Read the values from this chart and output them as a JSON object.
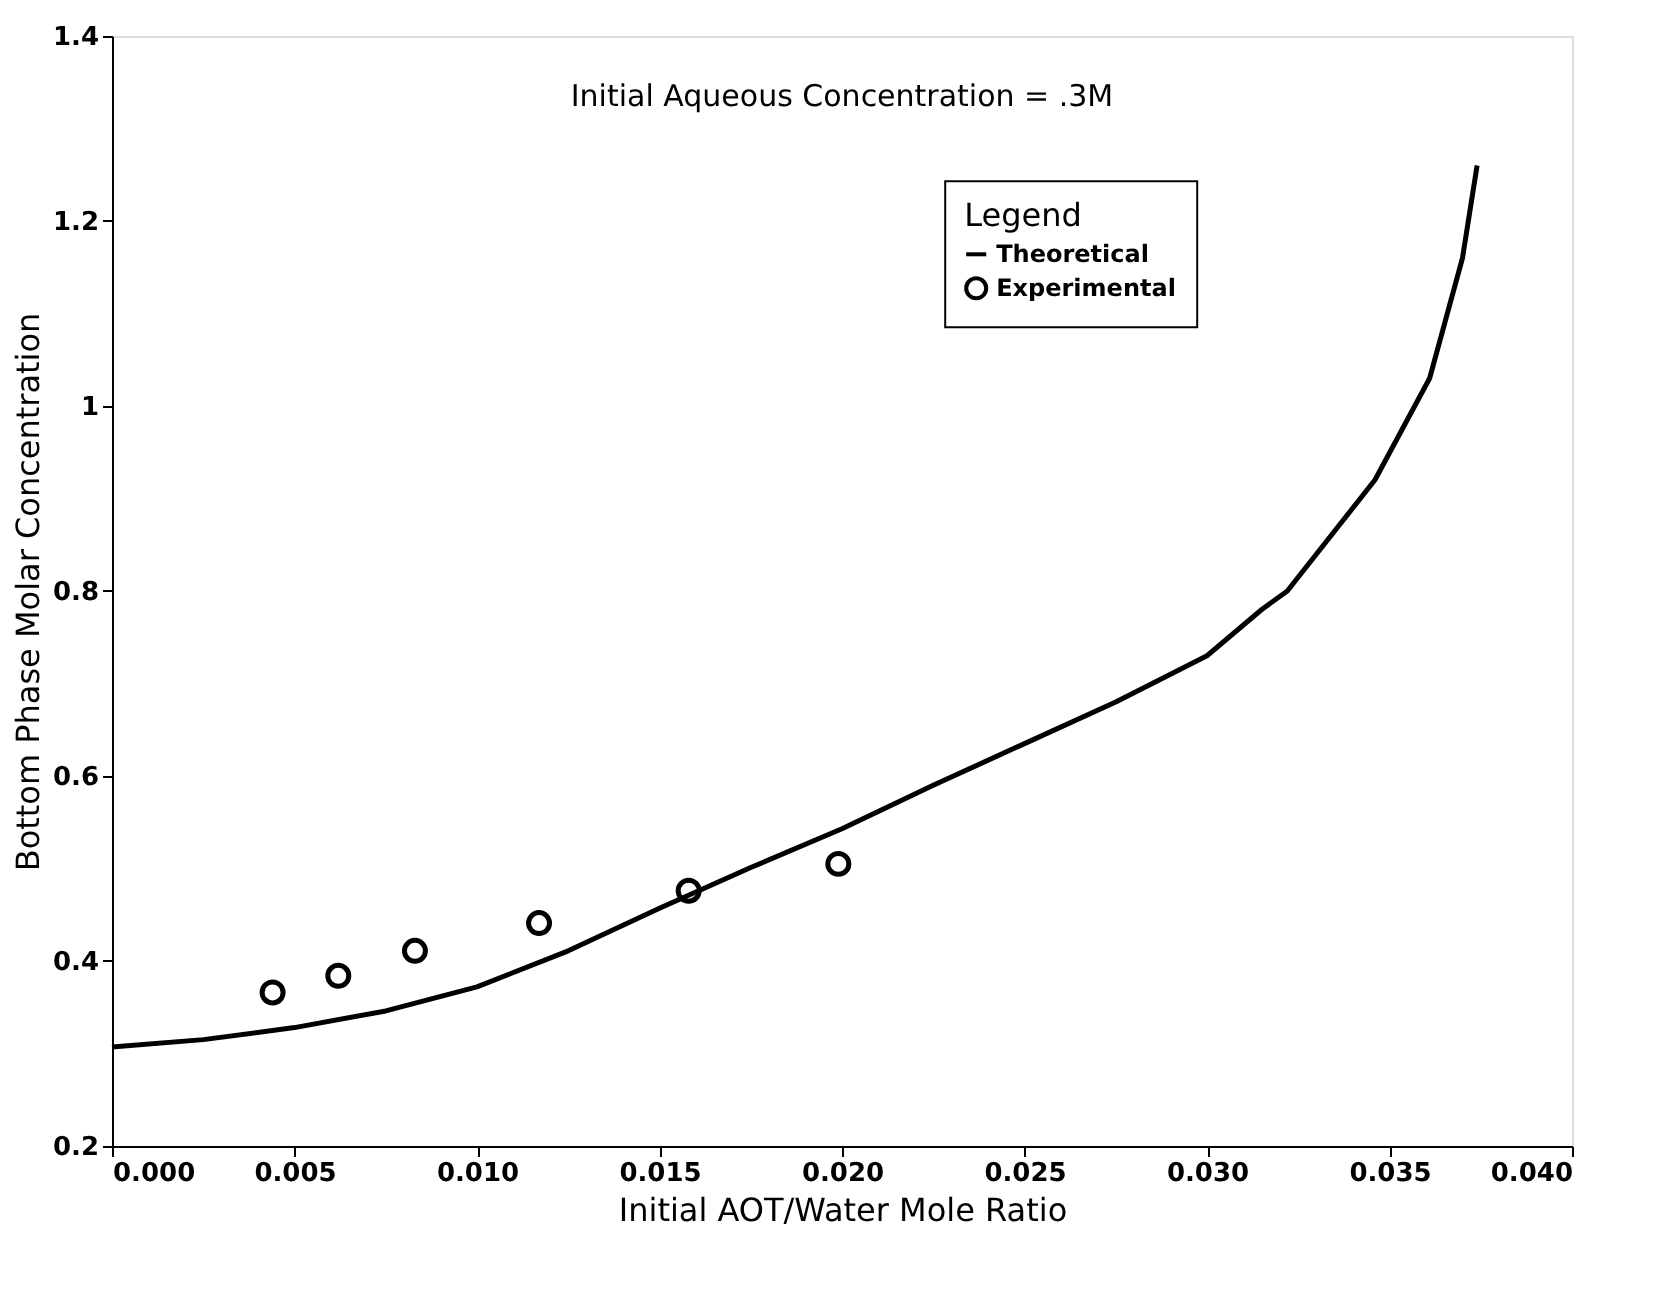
{
  "chart_data": {
    "type": "line",
    "xlabel": "Initial AOT/Water Mole Ratio",
    "ylabel": "Bottom Phase Molar Concentration",
    "annotations": [
      "Initial Aqueous Concentration = .3M"
    ],
    "legend_title": "Legend",
    "legend": "top right",
    "grid": false,
    "xlim": [
      0,
      0.04
    ],
    "xticks": [
      {
        "value": 0,
        "label": "0.000"
      },
      {
        "value": 0.005,
        "label": "0.005"
      },
      {
        "value": 0.01,
        "label": "0.010"
      },
      {
        "value": 0.015,
        "label": "0.015"
      },
      {
        "value": 0.02,
        "label": "0.020"
      },
      {
        "value": 0.025,
        "label": "0.025"
      },
      {
        "value": 0.03,
        "label": "0.030"
      },
      {
        "value": 0.035,
        "label": "0.035"
      },
      {
        "value": 0.04,
        "label": "0.040"
      }
    ],
    "ylim": [
      0.2,
      1.4
    ],
    "yticks": [
      0.2,
      0.4,
      0.6,
      0.8,
      1,
      1.2,
      1.4
    ],
    "series": [
      {
        "name": "Theoretical",
        "color": "#000000",
        "marker": "none",
        "line_style": "solid",
        "x": [
          0,
          0.0025,
          0.005,
          0.0075,
          0.01,
          0.0125,
          0.015,
          0.0175,
          0.02,
          0.0225,
          0.025,
          0.0275,
          0.03,
          0.0315,
          0.0322,
          0.0346,
          0.0361,
          0.037,
          0.0374
        ],
        "values": [
          0.307,
          0.315,
          0.328,
          0.346,
          0.372,
          0.411,
          0.457,
          0.501,
          0.543,
          0.59,
          0.635,
          0.68,
          0.73,
          0.78,
          0.8,
          0.92,
          1.03,
          1.16,
          1.26
        ]
      },
      {
        "name": "Experimental",
        "type": "scatter",
        "color": "#000000",
        "marker": "circle",
        "x": [
          0.0044,
          0.0062,
          0.0083,
          0.0117,
          0.0158,
          0.0199
        ],
        "values": [
          0.366,
          0.384,
          0.411,
          0.441,
          0.476,
          0.505
        ]
      }
    ]
  }
}
